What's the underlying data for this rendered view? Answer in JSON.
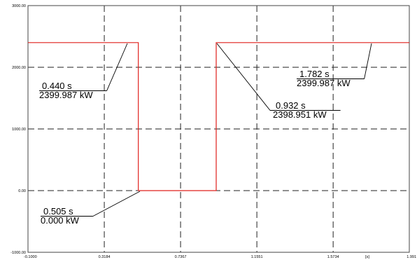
{
  "chart_data": {
    "type": "line",
    "title": "",
    "xlabel": "",
    "ylabel": "",
    "x_unit_label": "[s]",
    "xlim": [
      -0.1,
      1.991
    ],
    "ylim": [
      -1000.0,
      3000.0
    ],
    "x_ticks": [
      {
        "value": -0.1,
        "label": "-0.1000"
      },
      {
        "value": 0.3184,
        "label": "0.3184"
      },
      {
        "value": 0.7367,
        "label": "0.7367"
      },
      {
        "value": 1.1551,
        "label": "1.1551"
      },
      {
        "value": 1.5734,
        "label": "1.5734"
      },
      {
        "value": 1.991,
        "label": "1.991"
      }
    ],
    "y_ticks": [
      {
        "value": 3000.0,
        "label": "3000.00"
      },
      {
        "value": 2000.0,
        "label": "2000.00"
      },
      {
        "value": 1000.0,
        "label": "1000.00"
      },
      {
        "value": 0.0,
        "label": "0.00"
      },
      {
        "value": -1000.0,
        "label": "-1000.00"
      }
    ],
    "grid": true,
    "series": [
      {
        "color": "#e0201c",
        "x": [
          -0.1,
          0.505,
          0.505,
          0.932,
          0.932,
          1.991
        ],
        "y": [
          2400.0,
          2400.0,
          0.0,
          0.0,
          2400.0,
          2400.0
        ]
      }
    ],
    "annotations": [
      {
        "time": "0.440 s",
        "value": "2399.987 kW",
        "x": 0.44,
        "y": 2399.987
      },
      {
        "time": "0.505 s",
        "value": "0.000 kW",
        "x": 0.505,
        "y": 0.0
      },
      {
        "time": "0.932 s",
        "value": "2398.951 kW",
        "x": 0.932,
        "y": 2398.951
      },
      {
        "time": "1.782 s",
        "value": "2399.987 kW",
        "x": 1.782,
        "y": 2399.987
      }
    ]
  }
}
